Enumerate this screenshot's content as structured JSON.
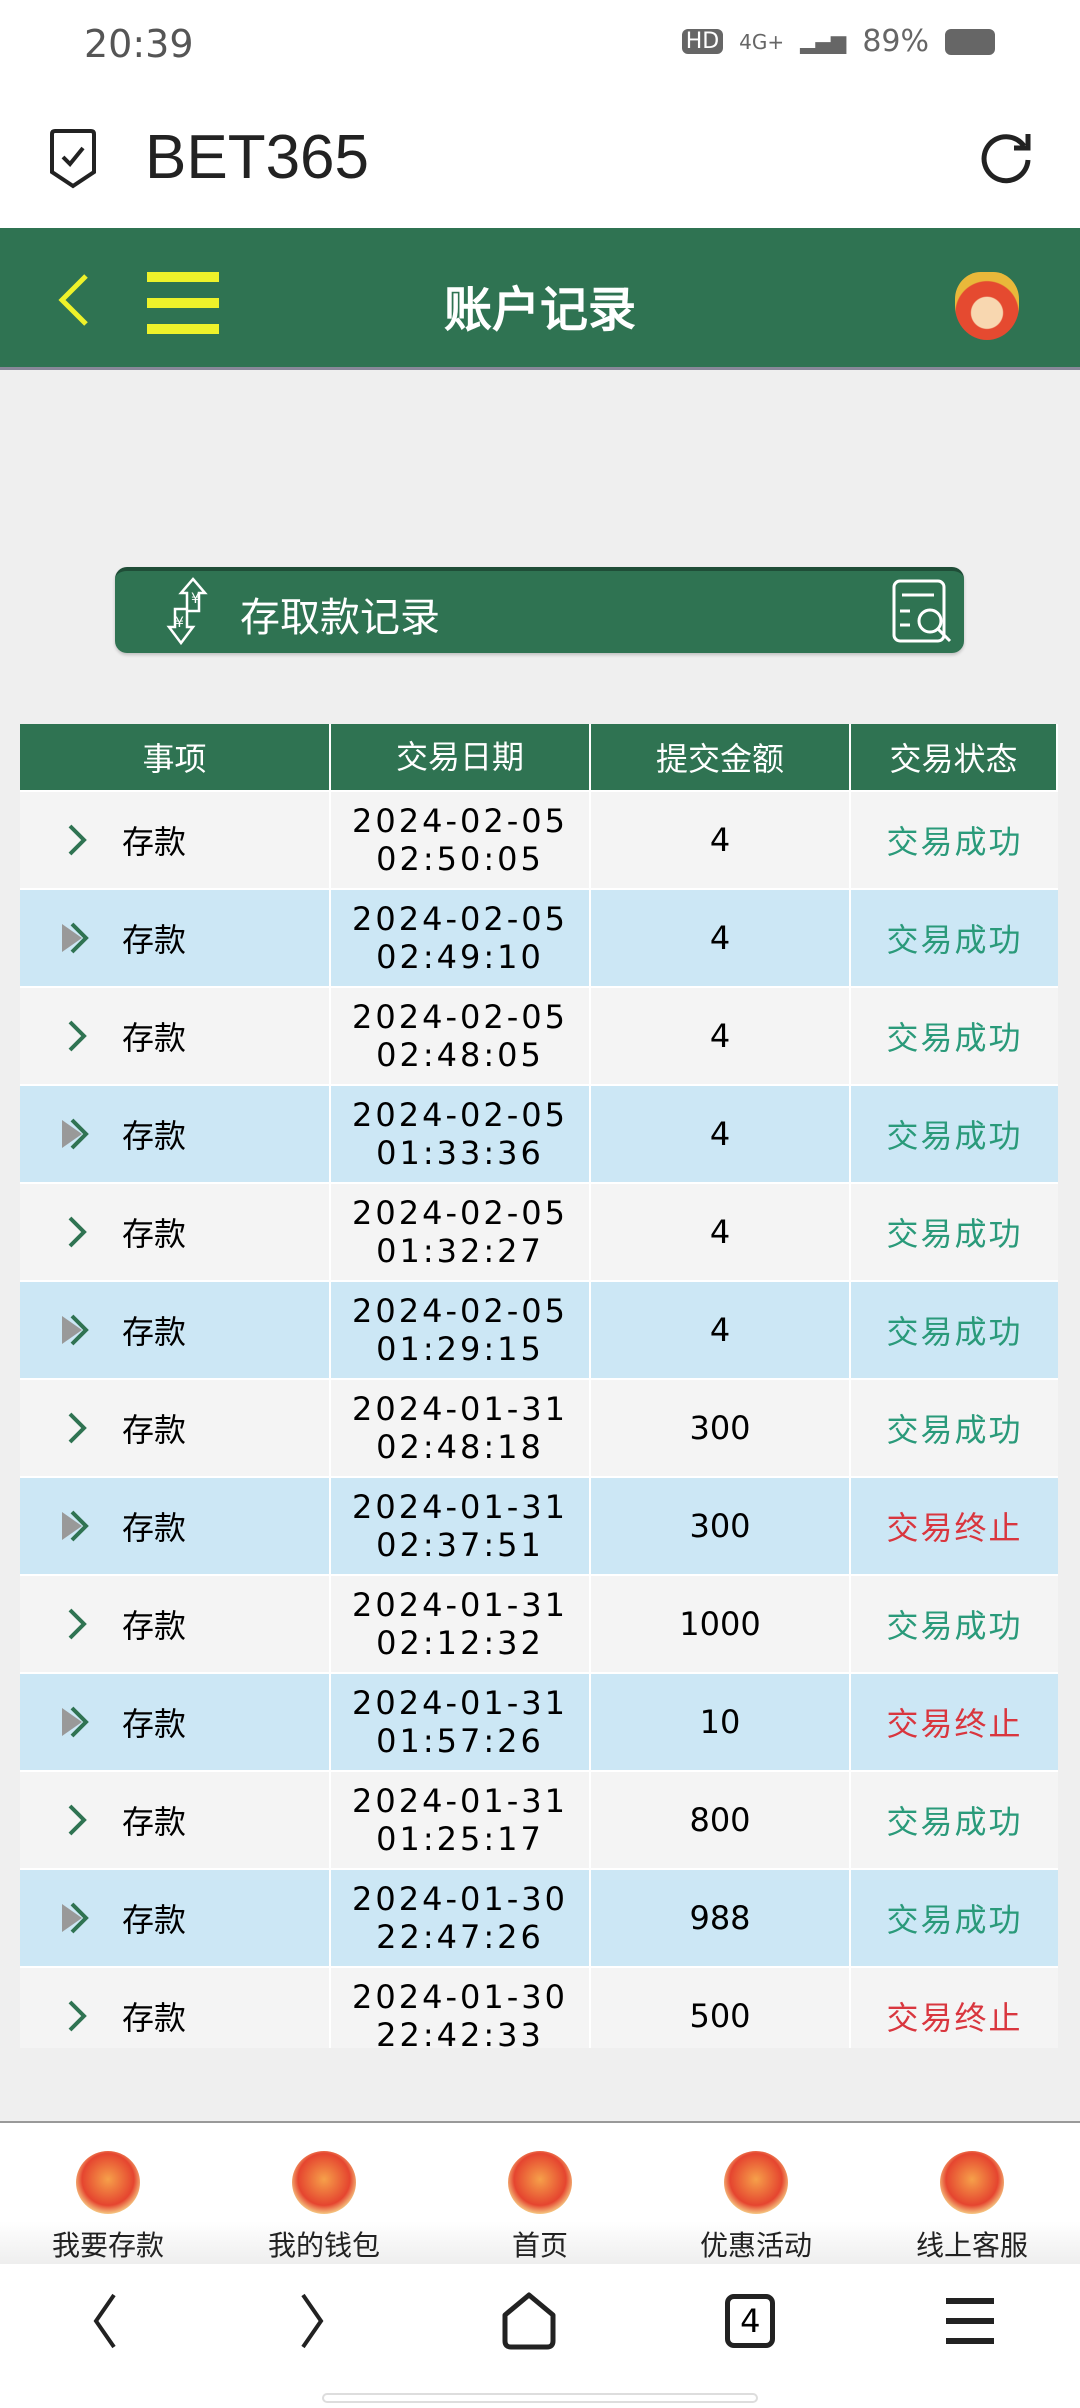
{
  "status_bar": {
    "time": "20:39",
    "battery": "89%",
    "network": "4G+"
  },
  "browser": {
    "site_title": "BET365"
  },
  "header": {
    "title": "账户记录"
  },
  "records_button": {
    "label": "存取款记录"
  },
  "table": {
    "columns": [
      "事项",
      "交易日期",
      "提交金额",
      "交易状态"
    ],
    "rows": [
      {
        "type": "存款",
        "date": "2024-02-05",
        "time": "02:50:05",
        "amount": "4",
        "status": "交易成功",
        "ok": true
      },
      {
        "type": "存款",
        "date": "2024-02-05",
        "time": "02:49:10",
        "amount": "4",
        "status": "交易成功",
        "ok": true
      },
      {
        "type": "存款",
        "date": "2024-02-05",
        "time": "02:48:05",
        "amount": "4",
        "status": "交易成功",
        "ok": true
      },
      {
        "type": "存款",
        "date": "2024-02-05",
        "time": "01:33:36",
        "amount": "4",
        "status": "交易成功",
        "ok": true
      },
      {
        "type": "存款",
        "date": "2024-02-05",
        "time": "01:32:27",
        "amount": "4",
        "status": "交易成功",
        "ok": true
      },
      {
        "type": "存款",
        "date": "2024-02-05",
        "time": "01:29:15",
        "amount": "4",
        "status": "交易成功",
        "ok": true
      },
      {
        "type": "存款",
        "date": "2024-01-31",
        "time": "02:48:18",
        "amount": "300",
        "status": "交易成功",
        "ok": true
      },
      {
        "type": "存款",
        "date": "2024-01-31",
        "time": "02:37:51",
        "amount": "300",
        "status": "交易终止",
        "ok": false
      },
      {
        "type": "存款",
        "date": "2024-01-31",
        "time": "02:12:32",
        "amount": "1000",
        "status": "交易成功",
        "ok": true
      },
      {
        "type": "存款",
        "date": "2024-01-31",
        "time": "01:57:26",
        "amount": "10",
        "status": "交易终止",
        "ok": false
      },
      {
        "type": "存款",
        "date": "2024-01-31",
        "time": "01:25:17",
        "amount": "800",
        "status": "交易成功",
        "ok": true
      },
      {
        "type": "存款",
        "date": "2024-01-30",
        "time": "22:47:26",
        "amount": "988",
        "status": "交易成功",
        "ok": true
      },
      {
        "type": "存款",
        "date": "2024-01-30",
        "time": "22:42:33",
        "amount": "500",
        "status": "交易终止",
        "ok": false
      }
    ]
  },
  "colors": {
    "brand_green": "#2f7352",
    "success": "#2a9a7a",
    "terminated": "#d9363e",
    "accent_yellow": "#eef22a"
  },
  "bottom_nav": [
    {
      "label": "我要存款"
    },
    {
      "label": "我的钱包"
    },
    {
      "label": "首页"
    },
    {
      "label": "优惠活动"
    },
    {
      "label": "线上客服"
    }
  ],
  "system_nav": {
    "tabs_count": "4"
  }
}
